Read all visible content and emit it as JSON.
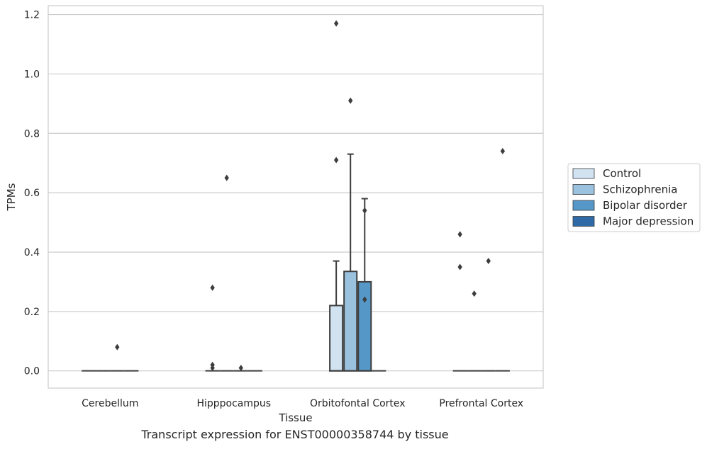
{
  "chart_data": {
    "type": "box",
    "caption": "Transcript expression for ENST00000358744 by tissue",
    "xlabel": "Tissue",
    "ylabel": "TPMs",
    "ylim": [
      -0.058,
      1.23
    ],
    "yticks": [
      0.0,
      0.2,
      0.4,
      0.6,
      0.8,
      1.0,
      1.2
    ],
    "ytick_labels": [
      "0.0",
      "0.2",
      "0.4",
      "0.6",
      "0.8",
      "1.0",
      "1.2"
    ],
    "grid": "horizontal",
    "legend_position": "right",
    "categories": [
      "Cerebellum",
      "Hipppocampus",
      "Orbitofontal Cortex",
      "Prefrontal Cortex"
    ],
    "series": [
      {
        "name": "Control",
        "color": "#d1e2f1",
        "boxes": [
          {
            "q1": 0,
            "median": 0,
            "q3": 0,
            "whisker_low": 0,
            "whisker_high": 0,
            "outliers": []
          },
          {
            "q1": 0,
            "median": 0,
            "q3": 0,
            "whisker_low": 0,
            "whisker_high": 0,
            "outliers": [
              0.28,
              0.02,
              0.01
            ]
          },
          {
            "q1": 0,
            "median": 0,
            "q3": 0.22,
            "whisker_low": 0,
            "whisker_high": 0.37,
            "outliers": [
              1.17,
              0.71
            ]
          },
          {
            "q1": 0,
            "median": 0,
            "q3": 0,
            "whisker_low": 0,
            "whisker_high": 0,
            "outliers": [
              0.46,
              0.35
            ]
          }
        ]
      },
      {
        "name": "Schizophrenia",
        "color": "#9ac1de",
        "boxes": [
          {
            "q1": 0,
            "median": 0,
            "q3": 0,
            "whisker_low": 0,
            "whisker_high": 0,
            "outliers": []
          },
          {
            "q1": 0,
            "median": 0,
            "q3": 0,
            "whisker_low": 0,
            "whisker_high": 0,
            "outliers": [
              0.65
            ]
          },
          {
            "q1": 0,
            "median": 0,
            "q3": 0.335,
            "whisker_low": 0,
            "whisker_high": 0.73,
            "outliers": [
              0.91
            ]
          },
          {
            "q1": 0,
            "median": 0,
            "q3": 0,
            "whisker_low": 0,
            "whisker_high": 0,
            "outliers": [
              0.26
            ]
          }
        ]
      },
      {
        "name": "Bipolar disorder",
        "color": "#5597c7",
        "boxes": [
          {
            "q1": 0,
            "median": 0,
            "q3": 0,
            "whisker_low": 0,
            "whisker_high": 0,
            "outliers": [
              0.08
            ]
          },
          {
            "q1": 0,
            "median": 0,
            "q3": 0,
            "whisker_low": 0,
            "whisker_high": 0,
            "outliers": [
              0.01
            ]
          },
          {
            "q1": 0,
            "median": 0,
            "q3": 0.3,
            "whisker_low": 0,
            "whisker_high": 0.58,
            "outliers": [
              0.54,
              0.24
            ]
          },
          {
            "q1": 0,
            "median": 0,
            "q3": 0,
            "whisker_low": 0,
            "whisker_high": 0,
            "outliers": [
              0.37
            ]
          }
        ]
      },
      {
        "name": "Major depression",
        "color": "#2f6aa6",
        "boxes": [
          {
            "q1": 0,
            "median": 0,
            "q3": 0,
            "whisker_low": 0,
            "whisker_high": 0,
            "outliers": []
          },
          {
            "q1": 0,
            "median": 0,
            "q3": 0,
            "whisker_low": 0,
            "whisker_high": 0,
            "outliers": []
          },
          {
            "q1": 0,
            "median": 0,
            "q3": 0,
            "whisker_low": 0,
            "whisker_high": 0,
            "outliers": []
          },
          {
            "q1": 0,
            "median": 0,
            "q3": 0,
            "whisker_low": 0,
            "whisker_high": 0,
            "outliers": [
              0.74
            ]
          }
        ]
      }
    ]
  }
}
